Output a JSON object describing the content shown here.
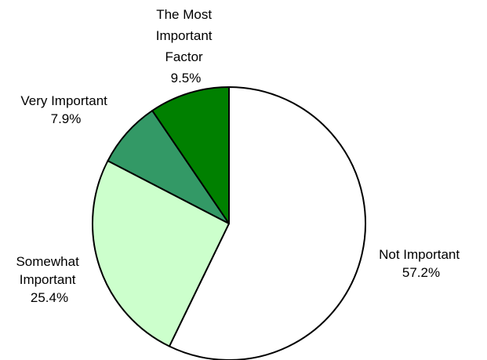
{
  "chart_data": {
    "type": "pie",
    "title": "",
    "slices": [
      {
        "lines": [
          "Not Important"
        ],
        "value_label": "57.2%",
        "value": 57.2,
        "color": "#ffffff"
      },
      {
        "lines": [
          "Somewhat",
          "Important"
        ],
        "value_label": "25.4%",
        "value": 25.4,
        "color": "#ccffcc"
      },
      {
        "lines": [
          "Very Important"
        ],
        "value_label": "7.9%",
        "value": 7.9,
        "color": "#339966"
      },
      {
        "lines": [
          "The Most",
          "Important",
          "Factor"
        ],
        "value_label": "9.5%",
        "value": 9.5,
        "color": "#008000"
      }
    ],
    "start": "12 o'clock",
    "direction": "clockwise",
    "stroke_color": "#000000",
    "legend": "none"
  }
}
